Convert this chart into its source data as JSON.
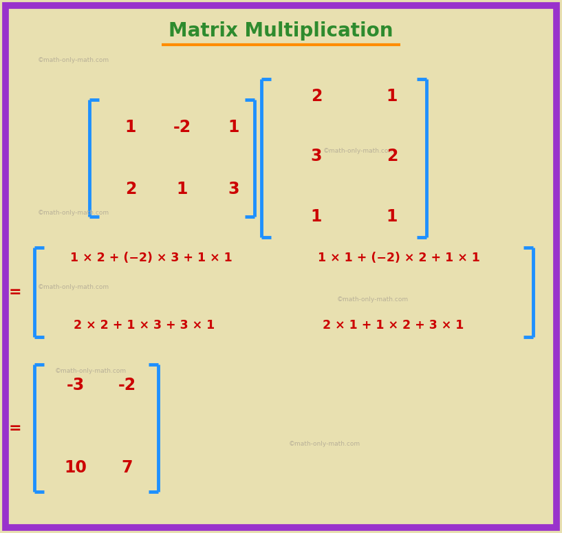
{
  "title": "Matrix Multiplication",
  "title_color": "#2e8b2e",
  "title_fontsize": 20,
  "underline_color": "#ff8c00",
  "bg_color": "#e8e0b0",
  "border_color": "#9932cc",
  "bracket_color": "#1e90ff",
  "text_color": "#cc0000",
  "watermark_color": "#b8b098",
  "watermark_text": "©math-only-math.com",
  "matrix1": [
    [
      "1",
      "-2",
      "1"
    ],
    [
      "2",
      "1",
      "3"
    ]
  ],
  "matrix2": [
    [
      "2",
      "1"
    ],
    [
      "3",
      "2"
    ],
    [
      "1",
      "1"
    ]
  ],
  "calc_row1_col1": "1 × 2 + (−2) × 3 + 1 × 1",
  "calc_row1_col2": "1 × 1 + (−2) × 2 + 1 × 1",
  "calc_row2_col1": "2 × 2 + 1 × 3 + 3 × 1",
  "calc_row2_col2": "2 × 1 + 1 × 2 + 3 × 1",
  "result": [
    [
      "-3",
      "-2"
    ],
    [
      "10",
      "7"
    ]
  ]
}
